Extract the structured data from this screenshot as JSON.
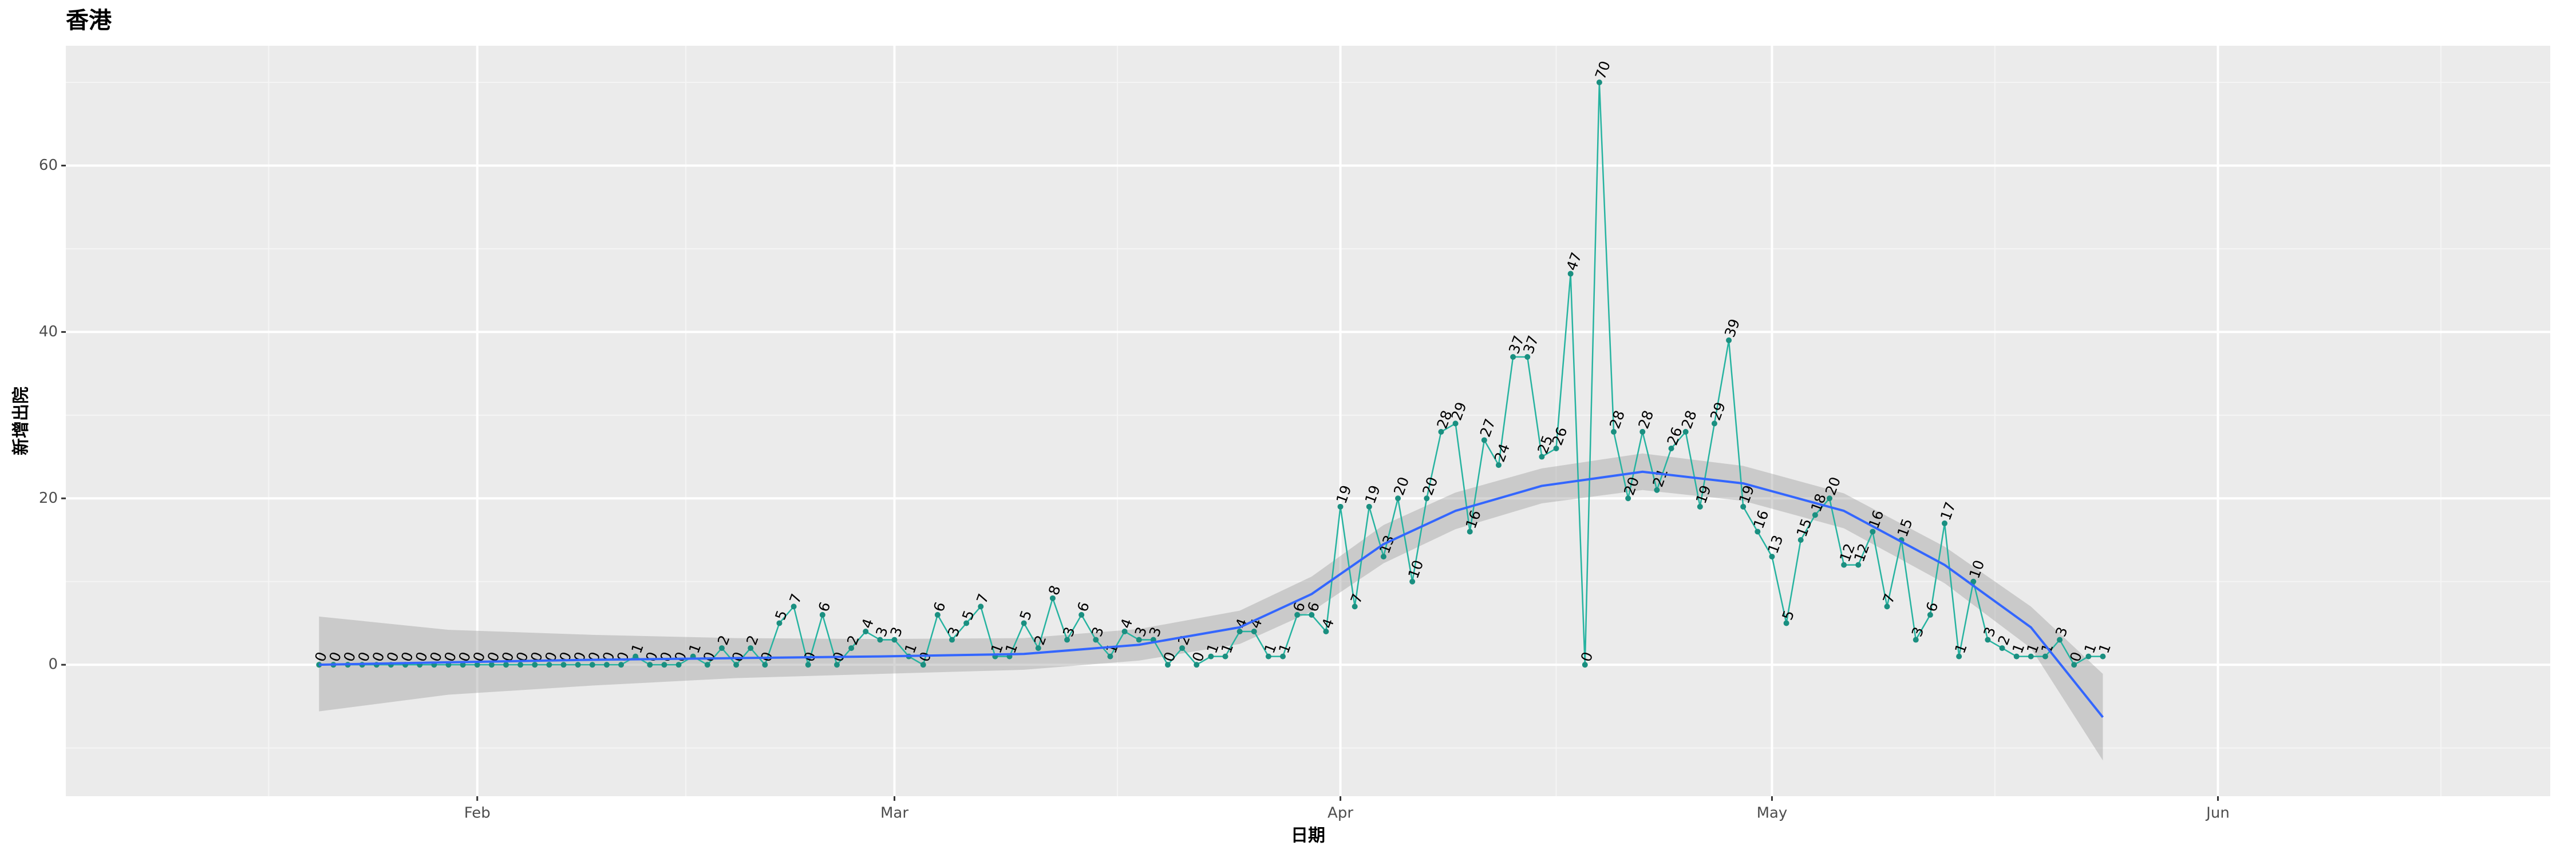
{
  "chart_data": {
    "type": "line",
    "title": "香港",
    "x_label": "日期",
    "y_label": "新增出院",
    "x": [
      21,
      22,
      23,
      24,
      25,
      26,
      27,
      28,
      29,
      30,
      31,
      32,
      33,
      34,
      35,
      36,
      37,
      38,
      39,
      40,
      41,
      42,
      43,
      44,
      45,
      46,
      47,
      48,
      49,
      50,
      51,
      52,
      53,
      54,
      55,
      56,
      57,
      58,
      59,
      60,
      61,
      62,
      63,
      64,
      65,
      66,
      67,
      68,
      69,
      70,
      71,
      72,
      73,
      74,
      75,
      76,
      77,
      78,
      79,
      80,
      81,
      82,
      83,
      84,
      85,
      86,
      87,
      88,
      89,
      90,
      91,
      92,
      93,
      94,
      95,
      96,
      97,
      98,
      99,
      100,
      101,
      102,
      103,
      104,
      105,
      106,
      107,
      108,
      109,
      110,
      111,
      112,
      113,
      114,
      115,
      116,
      117,
      118,
      119,
      120,
      121,
      122,
      123,
      124,
      125,
      126,
      127,
      128,
      129,
      130,
      131,
      132,
      133,
      134,
      135,
      136,
      137,
      138,
      139,
      140,
      141,
      142,
      143,
      144,
      145
    ],
    "series": [
      {
        "color": "#26b3a0",
        "point_color": "#1a8f80",
        "values": [
          0,
          0,
          0,
          0,
          0,
          0,
          0,
          0,
          0,
          0,
          0,
          0,
          0,
          0,
          0,
          0,
          0,
          0,
          0,
          0,
          0,
          0,
          1,
          0,
          0,
          0,
          1,
          0,
          2,
          0,
          2,
          0,
          5,
          7,
          0,
          6,
          0,
          2,
          4,
          3,
          3,
          1,
          0,
          6,
          3,
          5,
          7,
          1,
          1,
          5,
          2,
          8,
          3,
          6,
          3,
          1,
          4,
          3,
          3,
          0,
          2,
          0,
          1,
          1,
          4,
          4,
          1,
          1,
          6,
          6,
          4,
          19,
          7,
          19,
          13,
          20,
          10,
          20,
          28,
          29,
          16,
          27,
          24,
          37,
          37,
          25,
          26,
          47,
          0,
          70,
          28,
          20,
          28,
          21,
          26,
          28,
          19,
          29,
          39,
          19,
          16,
          13,
          5,
          15,
          18,
          20,
          12,
          12,
          16,
          7,
          15,
          3,
          6,
          17,
          1,
          10,
          3,
          2,
          1,
          1,
          1,
          3,
          0,
          1,
          1
        ]
      }
    ],
    "data_labels": true,
    "smooth": {
      "color": "#3366ff",
      "band_color": "#999999",
      "x": [
        21,
        30,
        40,
        50,
        60,
        70,
        78,
        85,
        90,
        95,
        100,
        106,
        113,
        120,
        127,
        134,
        140,
        145
      ],
      "values": [
        0,
        0.3,
        0.6,
        0.8,
        1.0,
        1.3,
        2.4,
        4.5,
        8.5,
        14.5,
        18.5,
        21.5,
        23.2,
        21.8,
        18.5,
        12.0,
        4.5,
        -6.3
      ],
      "lower": [
        -5.6,
        -3.6,
        -2.5,
        -1.6,
        -1.1,
        -0.6,
        0.5,
        2.5,
        6.4,
        12.2,
        16.3,
        19.4,
        21.0,
        19.7,
        16.4,
        9.8,
        2.0,
        -11.5
      ],
      "upper": [
        5.8,
        4.2,
        3.6,
        3.2,
        3.1,
        3.2,
        4.3,
        6.5,
        10.6,
        16.8,
        20.7,
        23.6,
        25.4,
        23.9,
        20.6,
        14.2,
        7.0,
        -1.1
      ]
    },
    "xlim": [
      3.4,
      176.1
    ],
    "xticks": [
      {
        "value": 32,
        "label": "Feb"
      },
      {
        "value": 61,
        "label": "Mar"
      },
      {
        "value": 92,
        "label": "Apr"
      },
      {
        "value": 122,
        "label": "May"
      },
      {
        "value": 153,
        "label": "Jun"
      }
    ],
    "ylim": [
      -15.8,
      74.4
    ],
    "yticks": [
      0,
      20,
      40,
      60
    ],
    "grid": true
  }
}
